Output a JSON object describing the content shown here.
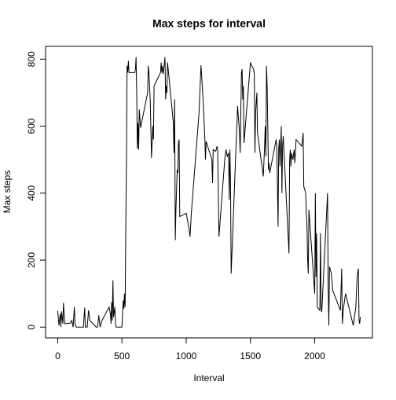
{
  "chart_data": {
    "type": "line",
    "title": "Max steps for interval",
    "xlabel": "Interval",
    "ylabel": "Max steps",
    "color": "#000000",
    "x": [
      0,
      10,
      20,
      25,
      30,
      40,
      45,
      55,
      100,
      110,
      120,
      130,
      135,
      145,
      200,
      210,
      215,
      230,
      240,
      250,
      300,
      310,
      320,
      330,
      345,
      400,
      410,
      415,
      420,
      425,
      430,
      435,
      445,
      450,
      455,
      500,
      510,
      515,
      520,
      525,
      530,
      535,
      540,
      545,
      550,
      555,
      600,
      605,
      610,
      615,
      620,
      625,
      630,
      635,
      645,
      700,
      705,
      710,
      720,
      730,
      740,
      745,
      750,
      800,
      805,
      810,
      815,
      820,
      830,
      835,
      840,
      845,
      850,
      855,
      900,
      905,
      910,
      915,
      920,
      930,
      935,
      940,
      945,
      950,
      1000,
      1010,
      1020,
      1030,
      1040,
      1100,
      1115,
      1130,
      1145,
      1150,
      1155,
      1200,
      1205,
      1210,
      1230,
      1240,
      1245,
      1250,
      1255,
      1300,
      1310,
      1320,
      1330,
      1335,
      1340,
      1345,
      1350,
      1400,
      1415,
      1420,
      1430,
      1435,
      1440,
      1445,
      1450,
      1500,
      1510,
      1525,
      1530,
      1535,
      1540,
      1550,
      1555,
      1600,
      1610,
      1615,
      1620,
      1625,
      1630,
      1640,
      1645,
      1650,
      1700,
      1705,
      1715,
      1720,
      1725,
      1730,
      1740,
      1745,
      1750,
      1755,
      1800,
      1805,
      1810,
      1815,
      1820,
      1830,
      1840,
      1845,
      1850,
      1855,
      1900,
      1910,
      1915,
      1930,
      1935,
      1940,
      1945,
      1950,
      1955,
      2000,
      2005,
      2010,
      2015,
      2020,
      2030,
      2040,
      2045,
      2050,
      2055,
      2100,
      2105,
      2110,
      2115,
      2130,
      2140,
      2150,
      2200,
      2210,
      2215,
      2225,
      2240,
      2300,
      2320,
      2330,
      2340,
      2345,
      2350,
      2355
    ],
    "values": [
      49,
      5,
      40,
      0,
      47,
      10,
      72,
      10,
      12,
      20,
      0,
      60,
      10,
      0,
      0,
      58,
      0,
      0,
      50,
      20,
      0,
      0,
      35,
      0,
      20,
      60,
      40,
      10,
      75,
      20,
      140,
      30,
      60,
      10,
      0,
      0,
      80,
      55,
      100,
      60,
      300,
      470,
      780,
      760,
      795,
      760,
      760,
      770,
      806,
      700,
      533,
      610,
      530,
      650,
      595,
      700,
      780,
      760,
      680,
      505,
      600,
      560,
      720,
      760,
      790,
      760,
      780,
      755,
      786,
      806,
      680,
      720,
      700,
      790,
      610,
      520,
      680,
      260,
      350,
      470,
      460,
      550,
      560,
      330,
      340,
      320,
      300,
      270,
      340,
      640,
      782,
      690,
      565,
      500,
      555,
      500,
      430,
      530,
      525,
      540,
      530,
      400,
      270,
      500,
      530,
      510,
      520,
      380,
      530,
      430,
      160,
      660,
      580,
      520,
      760,
      770,
      680,
      720,
      550,
      790,
      780,
      770,
      755,
      520,
      640,
      700,
      580,
      450,
      540,
      600,
      510,
      780,
      720,
      470,
      490,
      460,
      560,
      540,
      300,
      530,
      560,
      480,
      600,
      400,
      540,
      570,
      220,
      500,
      530,
      480,
      520,
      500,
      530,
      490,
      520,
      560,
      540,
      580,
      420,
      400,
      340,
      300,
      200,
      160,
      350,
      100,
      400,
      150,
      280,
      60,
      55,
      50,
      280,
      60,
      45,
      400,
      120,
      5,
      180,
      160,
      110,
      100,
      50,
      175,
      10,
      60,
      100,
      5,
      60,
      150,
      175,
      20,
      10,
      30
    ],
    "xlim": [
      -94.2,
      2449.2
    ],
    "ylim": [
      -32.24,
      838.24
    ],
    "xticks": [
      0,
      500,
      1000,
      1500,
      2000
    ],
    "yticks": [
      0,
      200,
      400,
      600,
      800
    ]
  }
}
